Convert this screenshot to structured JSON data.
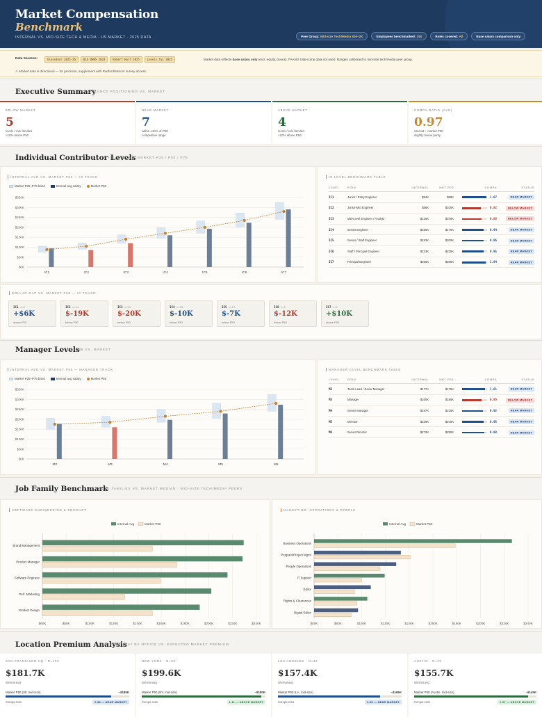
{
  "header": {
    "title": "Market Compensation",
    "title_italic": "Benchmark",
    "subtitle": "INTERNAL VS. MID-SIZE TECH & MEDIA · US MARKET · 2025 DATA",
    "pills": [
      {
        "label": "Peer Group: ",
        "value": "Mid-size Tech/Media 500–2K"
      },
      {
        "label": "Employees benchmarked: ",
        "value": "250"
      },
      {
        "label": "Roles covered: ",
        "value": "All"
      },
      {
        "label": "Base salary comparison only",
        "value": ""
      }
    ]
  },
  "sources": {
    "label": "Data Sources:",
    "tags": [
      "Glassdoor 2025-26",
      "BLS OEWS 2024",
      "Robert Half 2025",
      "Levels.fyi 2025"
    ],
    "note_prefix": "Market data reflects ",
    "note_bold": "base salary only",
    "note_suffix": " (excl. equity, bonus). FAANG total-comp data not used. Ranges calibrated to mid-size tech/media peer group.",
    "warning": "⚠ Market data is directional — for precision, supplement with Radford/Mercer survey access."
  },
  "executive": {
    "title": "Executive Summary",
    "subtitle": "AT-A-GLANCE POSITIONING VS. MARKET",
    "kpis": [
      {
        "label": "BELOW MARKET",
        "value": "5",
        "desc": "levels / role families\n>10% below P50",
        "color": "#b23a2e"
      },
      {
        "label": "NEAR MARKET",
        "value": "7",
        "desc": "within ±10% of P50\ncompetitive range",
        "color": "#1e4f8c"
      },
      {
        "label": "ABOVE MARKET",
        "value": "4",
        "desc": "levels / role families\n>10% above P50",
        "color": "#2e6b3e"
      },
      {
        "label": "COMPA-RATIO (AVG)",
        "value": "0.97",
        "desc": "internal ÷ market P50\nslightly below parity",
        "color": "#c48a2c"
      }
    ]
  },
  "ic": {
    "title": "Individual Contributor Levels",
    "subtitle": "IC1 – IC7 VS. MARKET P25 / P50 / P75",
    "chart_title": "INTERNAL AVG VS. MARKET P50 — IC TRACK",
    "table_title": "IC LEVEL BENCHMARK TABLE",
    "gap_title": "DOLLAR GAP VS. MARKET P50 — IC TRACK",
    "rows": [
      {
        "level": "IC1",
        "role": "Junior / Entry Engineer",
        "internal": "$94K",
        "mkt": "$88K",
        "compa": "1.07",
        "status": "NEAR MARKET",
        "below": false
      },
      {
        "level": "IC2",
        "role": "Junior-Mid Engineer",
        "internal": "$86K",
        "mkt": "$105K",
        "compa": "0.82",
        "status": "BELOW MARKET",
        "below": true
      },
      {
        "level": "IC3",
        "role": "Mid-Level Engineer / Analyst",
        "internal": "$120K",
        "mkt": "$140K",
        "compa": "0.86",
        "status": "BELOW MARKET",
        "below": true
      },
      {
        "level": "IC4",
        "role": "Senior Engineer",
        "internal": "$160K",
        "mkt": "$170K",
        "compa": "0.94",
        "status": "NEAR MARKET",
        "below": false
      },
      {
        "level": "IC5",
        "role": "Senior / Staff Engineer",
        "internal": "$193K",
        "mkt": "$200K",
        "compa": "0.96",
        "status": "NEAR MARKET",
        "below": false
      },
      {
        "level": "IC6",
        "role": "Staff / Principal Engineer",
        "internal": "$223K",
        "mkt": "$235K",
        "compa": "0.95",
        "status": "NEAR MARKET",
        "below": false
      },
      {
        "level": "IC7",
        "role": "Principal Engineer",
        "internal": "$290K",
        "mkt": "$280K",
        "compa": "1.04",
        "status": "NEAR MARKET",
        "below": false
      }
    ],
    "gaps": [
      {
        "level": "IC1",
        "n": "n=6",
        "value": "+$6K",
        "desc": "above P50",
        "color": "#1e4f8c"
      },
      {
        "level": "IC2",
        "n": "n=24",
        "value": "$-19K",
        "desc": "below P50",
        "color": "#b23a2e"
      },
      {
        "level": "IC3",
        "n": "n=32",
        "value": "$-20K",
        "desc": "below P50",
        "color": "#b23a2e"
      },
      {
        "level": "IC4",
        "n": "n=30",
        "value": "$-10K",
        "desc": "below P50",
        "color": "#1e4f8c"
      },
      {
        "level": "IC5",
        "n": "n=27",
        "value": "$-7K",
        "desc": "below P50",
        "color": "#1e4f8c"
      },
      {
        "level": "IC6",
        "n": "n=5",
        "value": "$-12K",
        "desc": "below P50",
        "color": "#b23a2e"
      },
      {
        "level": "IC7",
        "n": "n=1",
        "value": "+$10K",
        "desc": "above P50",
        "color": "#2e6b3e"
      }
    ]
  },
  "mgr": {
    "title": "Manager Levels",
    "subtitle": "M2 – M6 VS. MARKET",
    "chart_title": "INTERNAL AVG VS. MARKET P50 — MANAGER TRACK",
    "table_title": "MANAGER LEVEL BENCHMARK TABLE",
    "rows": [
      {
        "level": "M2",
        "role": "Team Lead / Junior Manager",
        "internal": "$177K",
        "mkt": "$175K",
        "compa": "1.01",
        "status": "NEAR MARKET",
        "below": false
      },
      {
        "level": "M3",
        "role": "Manager",
        "internal": "$160K",
        "mkt": "$185K",
        "compa": "0.86",
        "status": "BELOW MARKET",
        "below": true
      },
      {
        "level": "M4",
        "role": "Senior Manager",
        "internal": "$197K",
        "mkt": "$215K",
        "compa": "0.92",
        "status": "NEAR MARKET",
        "below": false
      },
      {
        "level": "M5",
        "role": "Director",
        "internal": "$229K",
        "mkt": "$240K",
        "compa": "0.95",
        "status": "NEAR MARKET",
        "below": false
      },
      {
        "level": "M6",
        "role": "Senior Director",
        "internal": "$273K",
        "mkt": "$280K",
        "compa": "0.98",
        "status": "NEAR MARKET",
        "below": false
      }
    ]
  },
  "table_headers": [
    "LEVEL",
    "ROLE",
    "INTERNAL",
    "MKT P50",
    "COMPA",
    "STATUS"
  ],
  "legend_track": [
    "Market P25–P75 band",
    "Internal avg salary",
    "Market P50"
  ],
  "legend_family": [
    "Internal Avg",
    "Market P50"
  ],
  "family": {
    "title": "Job Family Benchmark",
    "subtitle": "KEY ROLE FAMILIES VS. MARKET MEDIAN · MID-SIZE TECH/MEDIA PEERS",
    "left_title": "SOFTWARE ENGINEERING & PRODUCT",
    "right_title": "MARKETING, OPERATIONS & PEOPLE"
  },
  "location": {
    "title": "Location Premium Analysis",
    "subtitle": "INTERNAL PAY BY OFFICE VS. EXPECTED MARKET PREMIUM",
    "cards": [
      {
        "name": "SAN FRANCISCO HQ · N=133",
        "value": "$181.7K",
        "label": "internal avg",
        "mkt_label": "Market P50 (SF, mid-size)",
        "mkt_value": "~$185K",
        "ratio_label": "Compa-ratio",
        "ratio": "0.98 — NEAR MARKET",
        "fill": 0.98,
        "color": "#1e4f8c"
      },
      {
        "name": "NEW YORK · N=50",
        "value": "$199.6K",
        "label": "internal avg",
        "mkt_label": "Market P50 (NY, mid-size)",
        "mkt_value": "~$180K",
        "ratio_label": "Compa-ratio",
        "ratio": "1.11 — ABOVE MARKET",
        "fill": 1.11,
        "color": "#2e6b3e"
      },
      {
        "name": "LOS ANGELES · N=42",
        "value": "$157.4K",
        "label": "internal avg",
        "mkt_label": "Market P50 (LA, mid-size)",
        "mkt_value": "~$165K",
        "ratio_label": "Compa-ratio",
        "ratio": "0.95 — NEAR MARKET",
        "fill": 0.95,
        "color": "#1e4f8c"
      },
      {
        "name": "AUSTIN · N=25",
        "value": "$155.7K",
        "label": "internal avg",
        "mkt_label": "Market P50 (Austin, mid-size)",
        "mkt_value": "~$145K",
        "ratio_label": "Compa-ratio",
        "ratio": "1.07 — ABOVE MARKET",
        "fill": 1.07,
        "color": "#2e6b3e"
      }
    ]
  },
  "colors": {
    "navy": "#1e3a5f",
    "bar_internal": "#6b7f99",
    "bar_below": "#d9776a",
    "p50_line": "#c9822e",
    "band": "#dbe6f3",
    "family_internal": "#5a8a6e",
    "family_internal_alt": "#4d5f80",
    "family_market": "#f3e3cc"
  },
  "chart_data": [
    {
      "type": "bar",
      "title": "INTERNAL AVG VS. MARKET P50 — IC TRACK",
      "categories": [
        "IC1",
        "IC2",
        "IC3",
        "IC4",
        "IC5",
        "IC6",
        "IC7"
      ],
      "yticks": [
        "$0K",
        "$50K",
        "$100K",
        "$150K",
        "$200K",
        "$250K",
        "$300K",
        "$350K"
      ],
      "ylim": [
        0,
        350
      ],
      "series": [
        {
          "name": "Internal avg salary",
          "values": [
            94,
            86,
            120,
            160,
            193,
            223,
            290
          ]
        },
        {
          "name": "Market P50",
          "values": [
            88,
            105,
            140,
            170,
            200,
            235,
            280
          ]
        },
        {
          "name": "Market P25–P75 band",
          "low": [
            75,
            90,
            120,
            145,
            170,
            200,
            240
          ],
          "high": [
            105,
            122,
            162,
            198,
            232,
            272,
            325
          ]
        }
      ],
      "below_market": [
        false,
        true,
        true,
        false,
        false,
        false,
        false
      ]
    },
    {
      "type": "bar",
      "title": "INTERNAL AVG VS. MARKET P50 — MANAGER TRACK",
      "categories": [
        "M2",
        "M3",
        "M4",
        "M5",
        "M6"
      ],
      "yticks": [
        "$0K",
        "$50K",
        "$100K",
        "$150K",
        "$200K",
        "$250K",
        "$300K",
        "$350K"
      ],
      "ylim": [
        0,
        350
      ],
      "series": [
        {
          "name": "Internal avg salary",
          "values": [
            177,
            160,
            197,
            229,
            273
          ]
        },
        {
          "name": "Market P50",
          "values": [
            175,
            185,
            215,
            240,
            280
          ]
        },
        {
          "name": "Market P25–P75 band",
          "low": [
            150,
            160,
            185,
            205,
            240
          ],
          "high": [
            205,
            215,
            250,
            280,
            325
          ]
        }
      ],
      "below_market": [
        false,
        true,
        false,
        false,
        false
      ]
    },
    {
      "type": "bar",
      "orientation": "horizontal",
      "title": "SOFTWARE ENGINEERING & PRODUCT",
      "categories": [
        "Brand Management",
        "Product Manager",
        "Software Engineer",
        "Perf. Marketing",
        "Product Design"
      ],
      "xticks": [
        "$60K",
        "$80K",
        "$100K",
        "$120K",
        "$140K",
        "$160K",
        "$180K",
        "$200K",
        "$220K",
        "$240K"
      ],
      "xlim": [
        60,
        245
      ],
      "series": [
        {
          "name": "Internal Avg",
          "values": [
            234,
            233,
            220,
            206,
            196
          ]
        },
        {
          "name": "Market P50",
          "values": [
            155,
            176,
            162,
            131,
            155
          ]
        }
      ]
    },
    {
      "type": "bar",
      "orientation": "horizontal",
      "title": "MARKETING, OPERATIONS & PEOPLE",
      "categories": [
        "Business Operations",
        "Program/Project Mgmt",
        "People Operations",
        "IT Support",
        "Editor",
        "Rights & Clearances",
        "Digital Editor"
      ],
      "xticks": [
        "$60K",
        "$80K",
        "$100K",
        "$120K",
        "$140K",
        "$160K",
        "$180K",
        "$200K",
        "$220K",
        "$240K"
      ],
      "xlim": [
        60,
        245
      ],
      "series": [
        {
          "name": "Internal Avg",
          "values": [
            231,
            135,
            131,
            121,
            109,
            106,
            98
          ]
        },
        {
          "name": "Market P50",
          "values": [
            182,
            143,
            117,
            101,
            95,
            97,
            92
          ]
        }
      ]
    }
  ]
}
